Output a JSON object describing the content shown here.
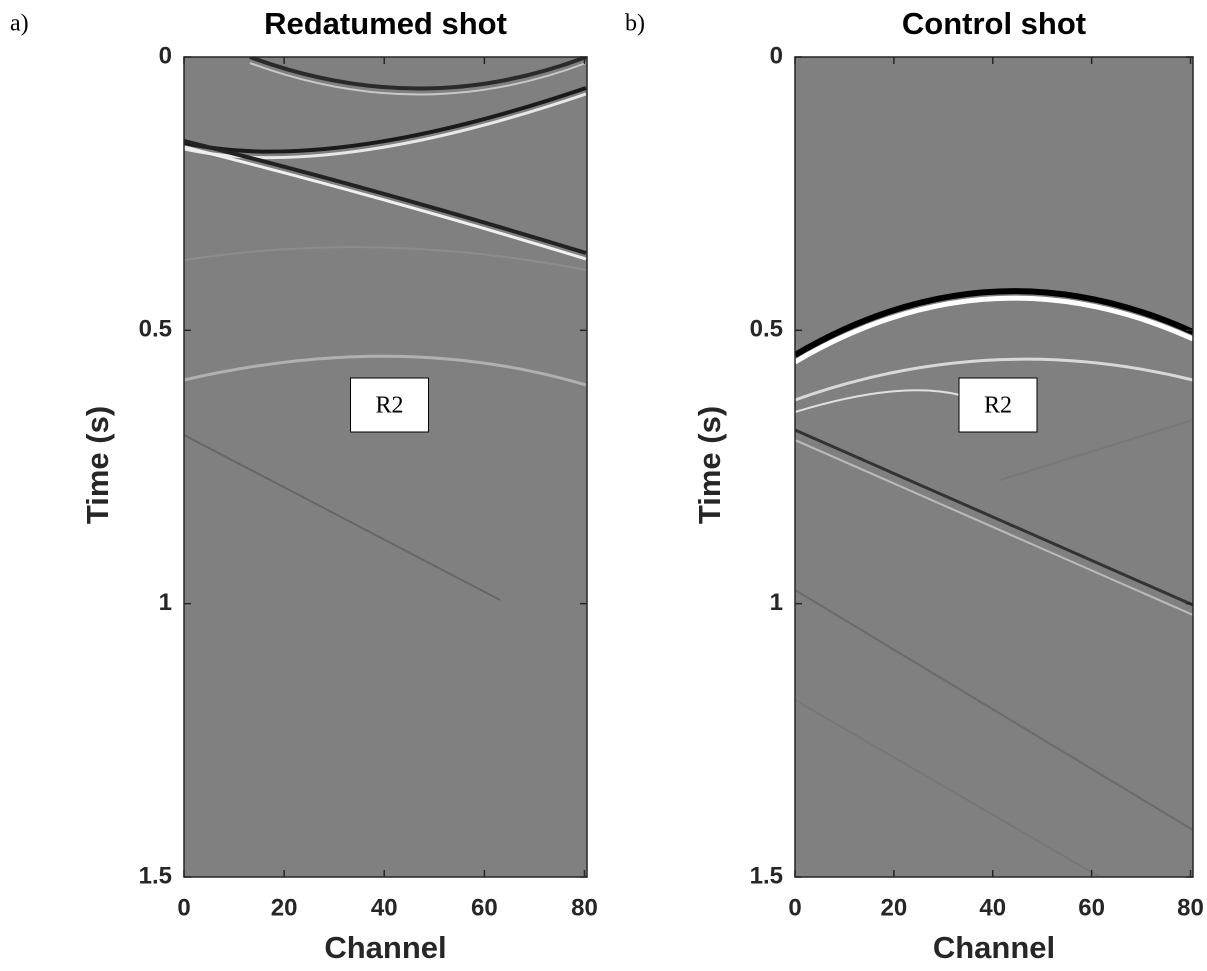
{
  "chart_data": [
    {
      "type": "image",
      "panel_label": "a)",
      "title": "Redatumed shot",
      "xlabel": "Channel",
      "ylabel": "Time (s)",
      "annotation": "R2",
      "xlim": [
        0,
        80.5
      ],
      "xticks": [
        0,
        20,
        40,
        60,
        80
      ],
      "ylim": [
        0,
        1.5
      ],
      "yticks": [
        0,
        0.5,
        1,
        1.5
      ],
      "y_reversed": true,
      "background": "#808080"
    },
    {
      "type": "image",
      "panel_label": "b)",
      "title": "Control shot",
      "xlabel": "Channel",
      "ylabel": "Time (s)",
      "annotation": "R2",
      "xlim": [
        0,
        80.5
      ],
      "xticks": [
        0,
        20,
        40,
        60,
        80
      ],
      "ylim": [
        0,
        1.5
      ],
      "yticks": [
        0,
        0.5,
        1,
        1.5
      ],
      "y_reversed": true,
      "background": "#808080"
    }
  ]
}
